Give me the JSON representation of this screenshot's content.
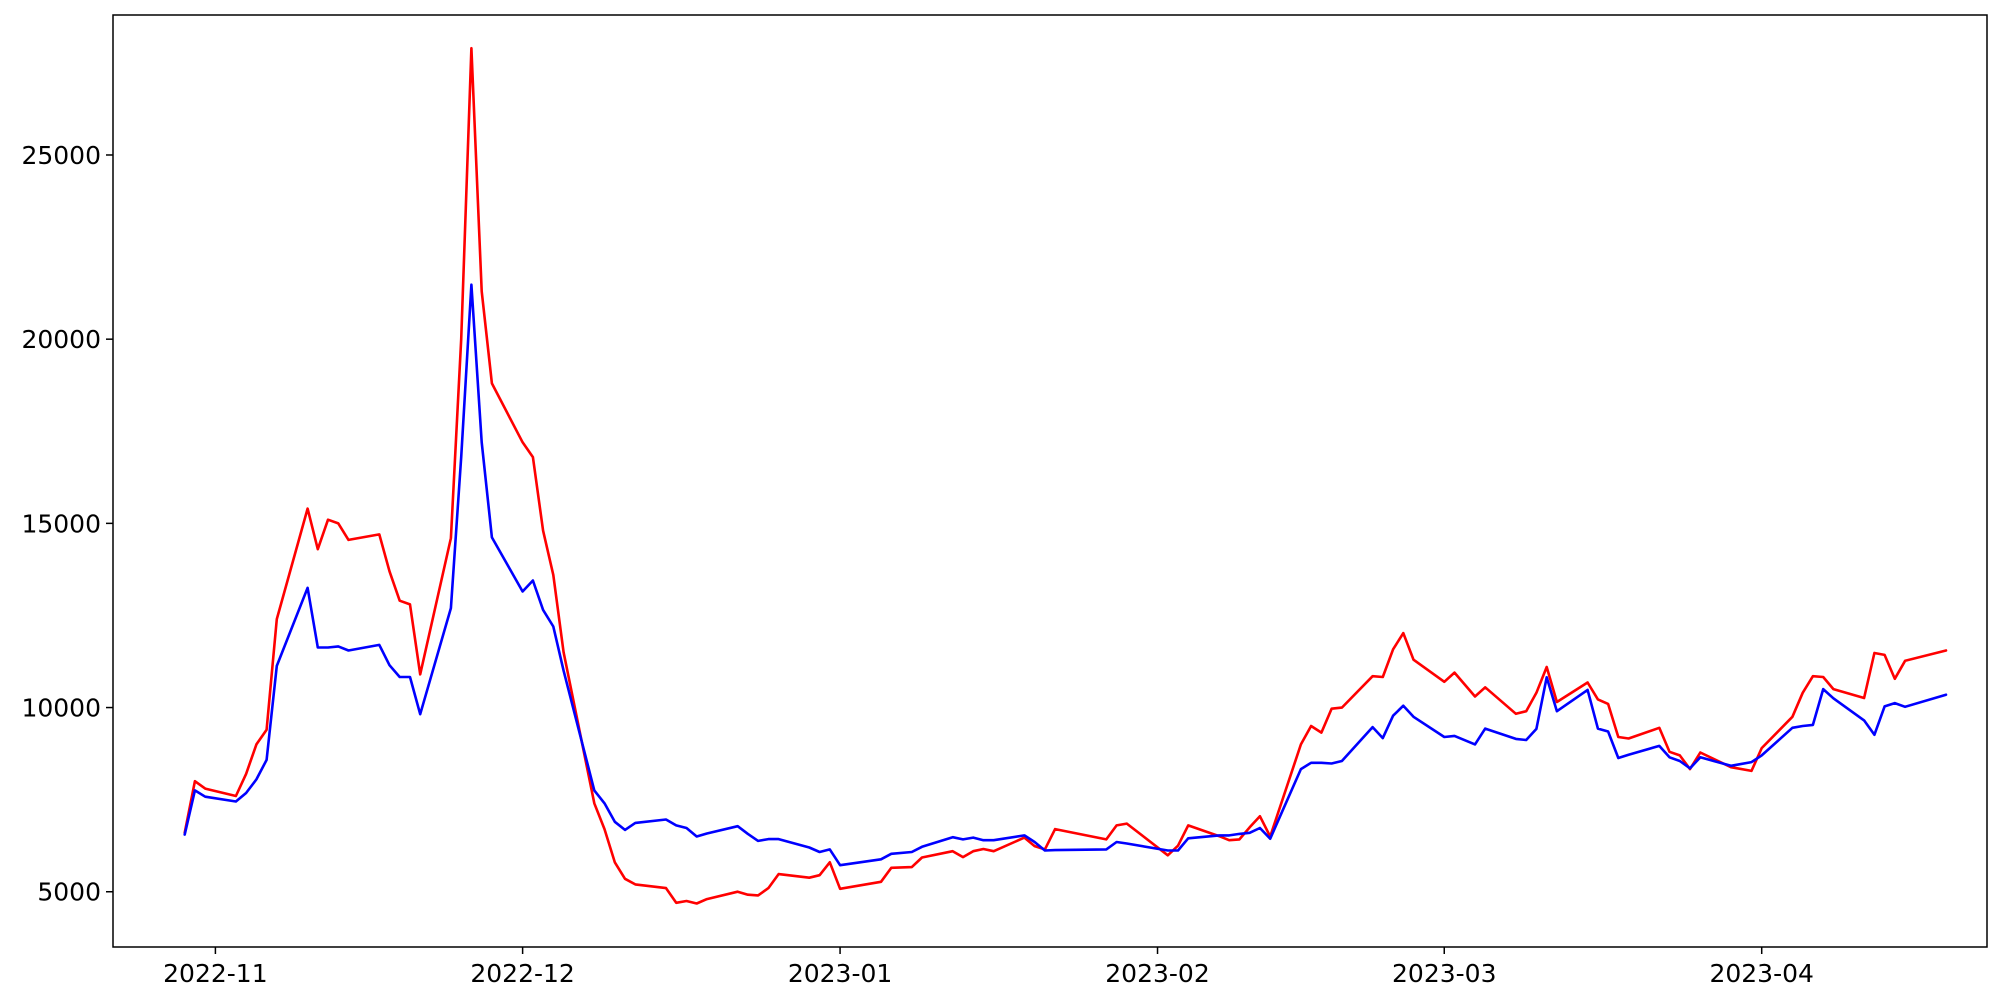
{
  "chart_data": {
    "type": "line",
    "title": "",
    "xlabel": "",
    "ylabel": "",
    "grid": false,
    "legend": "none",
    "xlim": [
      "2022-10-22",
      "2023-04-23"
    ],
    "ylim": [
      3500,
      28800
    ],
    "x_ticks": [
      {
        "date": "2022-11-01",
        "label": "2022-11"
      },
      {
        "date": "2022-12-01",
        "label": "2022-12"
      },
      {
        "date": "2023-01-01",
        "label": "2023-01"
      },
      {
        "date": "2023-02-01",
        "label": "2023-02"
      },
      {
        "date": "2023-03-01",
        "label": "2023-03"
      },
      {
        "date": "2023-04-01",
        "label": "2023-04"
      }
    ],
    "y_ticks": [
      {
        "value": 5000,
        "label": "5000"
      },
      {
        "value": 10000,
        "label": "10000"
      },
      {
        "value": 15000,
        "label": "15000"
      },
      {
        "value": 20000,
        "label": "20000"
      },
      {
        "value": 25000,
        "label": "25000"
      }
    ],
    "series": [
      {
        "color": "#ff0000",
        "points": [
          [
            "2022-10-29",
            6600
          ],
          [
            "2022-10-30",
            8000
          ],
          [
            "2022-10-31",
            7800
          ],
          [
            "2022-11-03",
            7600
          ],
          [
            "2022-11-04",
            8200
          ],
          [
            "2022-11-05",
            9000
          ],
          [
            "2022-11-06",
            9400
          ],
          [
            "2022-11-07",
            12400
          ],
          [
            "2022-11-10",
            15400
          ],
          [
            "2022-11-11",
            14300
          ],
          [
            "2022-11-12",
            15100
          ],
          [
            "2022-11-13",
            15000
          ],
          [
            "2022-11-14",
            14550
          ],
          [
            "2022-11-17",
            14700
          ],
          [
            "2022-11-18",
            13700
          ],
          [
            "2022-11-19",
            12900
          ],
          [
            "2022-11-20",
            12800
          ],
          [
            "2022-11-21",
            10900
          ],
          [
            "2022-11-24",
            14600
          ],
          [
            "2022-11-25",
            20000
          ],
          [
            "2022-11-26",
            27900
          ],
          [
            "2022-11-27",
            21300
          ],
          [
            "2022-11-28",
            18800
          ],
          [
            "2022-12-01",
            17200
          ],
          [
            "2022-12-02",
            16800
          ],
          [
            "2022-12-03",
            14800
          ],
          [
            "2022-12-04",
            13600
          ],
          [
            "2022-12-05",
            11500
          ],
          [
            "2022-12-08",
            7400
          ],
          [
            "2022-12-09",
            6700
          ],
          [
            "2022-12-10",
            5800
          ],
          [
            "2022-12-11",
            5350
          ],
          [
            "2022-12-12",
            5200
          ],
          [
            "2022-12-15",
            5100
          ],
          [
            "2022-12-16",
            4700
          ],
          [
            "2022-12-17",
            4750
          ],
          [
            "2022-12-18",
            4680
          ],
          [
            "2022-12-19",
            4800
          ],
          [
            "2022-12-22",
            5000
          ],
          [
            "2022-12-23",
            4920
          ],
          [
            "2022-12-24",
            4900
          ],
          [
            "2022-12-25",
            5100
          ],
          [
            "2022-12-26",
            5480
          ],
          [
            "2022-12-29",
            5380
          ],
          [
            "2022-12-30",
            5450
          ],
          [
            "2022-12-31",
            5800
          ],
          [
            "2023-01-01",
            5080
          ],
          [
            "2023-01-05",
            5270
          ],
          [
            "2023-01-06",
            5650
          ],
          [
            "2023-01-08",
            5670
          ],
          [
            "2023-01-09",
            5930
          ],
          [
            "2023-01-12",
            6100
          ],
          [
            "2023-01-13",
            5940
          ],
          [
            "2023-01-14",
            6100
          ],
          [
            "2023-01-15",
            6160
          ],
          [
            "2023-01-16",
            6100
          ],
          [
            "2023-01-19",
            6470
          ],
          [
            "2023-01-20",
            6240
          ],
          [
            "2023-01-21",
            6150
          ],
          [
            "2023-01-22",
            6700
          ],
          [
            "2023-01-27",
            6420
          ],
          [
            "2023-01-28",
            6800
          ],
          [
            "2023-01-29",
            6850
          ],
          [
            "2023-02-02",
            5990
          ],
          [
            "2023-02-03",
            6250
          ],
          [
            "2023-02-04",
            6800
          ],
          [
            "2023-02-07",
            6510
          ],
          [
            "2023-02-08",
            6400
          ],
          [
            "2023-02-09",
            6420
          ],
          [
            "2023-02-10",
            6750
          ],
          [
            "2023-02-11",
            7050
          ],
          [
            "2023-02-12",
            6500
          ],
          [
            "2023-02-15",
            9000
          ],
          [
            "2023-02-16",
            9500
          ],
          [
            "2023-02-17",
            9320
          ],
          [
            "2023-02-18",
            9970
          ],
          [
            "2023-02-19",
            10000
          ],
          [
            "2023-02-22",
            10850
          ],
          [
            "2023-02-23",
            10830
          ],
          [
            "2023-02-24",
            11580
          ],
          [
            "2023-02-25",
            12020
          ],
          [
            "2023-02-26",
            11300
          ],
          [
            "2023-03-01",
            10700
          ],
          [
            "2023-03-02",
            10950
          ],
          [
            "2023-03-04",
            10300
          ],
          [
            "2023-03-05",
            10550
          ],
          [
            "2023-03-08",
            9830
          ],
          [
            "2023-03-09",
            9900
          ],
          [
            "2023-03-10",
            10400
          ],
          [
            "2023-03-11",
            11100
          ],
          [
            "2023-03-12",
            10150
          ],
          [
            "2023-03-15",
            10680
          ],
          [
            "2023-03-16",
            10220
          ],
          [
            "2023-03-17",
            10100
          ],
          [
            "2023-03-18",
            9200
          ],
          [
            "2023-03-19",
            9160
          ],
          [
            "2023-03-22",
            9450
          ],
          [
            "2023-03-23",
            8800
          ],
          [
            "2023-03-24",
            8700
          ],
          [
            "2023-03-25",
            8330
          ],
          [
            "2023-03-26",
            8780
          ],
          [
            "2023-03-29",
            8380
          ],
          [
            "2023-03-31",
            8280
          ],
          [
            "2023-04-01",
            8900
          ],
          [
            "2023-04-04",
            9750
          ],
          [
            "2023-04-05",
            10400
          ],
          [
            "2023-04-06",
            10850
          ],
          [
            "2023-04-07",
            10830
          ],
          [
            "2023-04-08",
            10500
          ],
          [
            "2023-04-11",
            10260
          ],
          [
            "2023-04-12",
            11480
          ],
          [
            "2023-04-13",
            11430
          ],
          [
            "2023-04-14",
            10780
          ],
          [
            "2023-04-15",
            11270
          ],
          [
            "2023-04-19",
            11550
          ]
        ]
      },
      {
        "color": "#0000ff",
        "points": [
          [
            "2022-10-29",
            6550
          ],
          [
            "2022-10-30",
            7750
          ],
          [
            "2022-10-31",
            7580
          ],
          [
            "2022-11-03",
            7450
          ],
          [
            "2022-11-04",
            7680
          ],
          [
            "2022-11-05",
            8050
          ],
          [
            "2022-11-06",
            8580
          ],
          [
            "2022-11-07",
            11130
          ],
          [
            "2022-11-10",
            13250
          ],
          [
            "2022-11-11",
            11630
          ],
          [
            "2022-11-12",
            11630
          ],
          [
            "2022-11-13",
            11660
          ],
          [
            "2022-11-14",
            11550
          ],
          [
            "2022-11-17",
            11700
          ],
          [
            "2022-11-18",
            11150
          ],
          [
            "2022-11-19",
            10830
          ],
          [
            "2022-11-20",
            10830
          ],
          [
            "2022-11-21",
            9820
          ],
          [
            "2022-11-24",
            12700
          ],
          [
            "2022-11-25",
            16800
          ],
          [
            "2022-11-26",
            21480
          ],
          [
            "2022-11-27",
            17200
          ],
          [
            "2022-11-28",
            14620
          ],
          [
            "2022-12-01",
            13150
          ],
          [
            "2022-12-02",
            13450
          ],
          [
            "2022-12-03",
            12650
          ],
          [
            "2022-12-04",
            12200
          ],
          [
            "2022-12-05",
            11000
          ],
          [
            "2022-12-08",
            7750
          ],
          [
            "2022-12-09",
            7400
          ],
          [
            "2022-12-10",
            6900
          ],
          [
            "2022-12-11",
            6680
          ],
          [
            "2022-12-12",
            6870
          ],
          [
            "2022-12-15",
            6960
          ],
          [
            "2022-12-16",
            6800
          ],
          [
            "2022-12-17",
            6730
          ],
          [
            "2022-12-18",
            6500
          ],
          [
            "2022-12-19",
            6580
          ],
          [
            "2022-12-22",
            6780
          ],
          [
            "2022-12-23",
            6570
          ],
          [
            "2022-12-24",
            6380
          ],
          [
            "2022-12-25",
            6430
          ],
          [
            "2022-12-26",
            6430
          ],
          [
            "2022-12-29",
            6200
          ],
          [
            "2022-12-30",
            6080
          ],
          [
            "2022-12-31",
            6150
          ],
          [
            "2023-01-01",
            5720
          ],
          [
            "2023-01-05",
            5880
          ],
          [
            "2023-01-06",
            6030
          ],
          [
            "2023-01-08",
            6080
          ],
          [
            "2023-01-09",
            6220
          ],
          [
            "2023-01-12",
            6480
          ],
          [
            "2023-01-13",
            6420
          ],
          [
            "2023-01-14",
            6470
          ],
          [
            "2023-01-15",
            6400
          ],
          [
            "2023-01-16",
            6400
          ],
          [
            "2023-01-19",
            6530
          ],
          [
            "2023-01-20",
            6350
          ],
          [
            "2023-01-21",
            6120
          ],
          [
            "2023-01-22",
            6130
          ],
          [
            "2023-01-27",
            6150
          ],
          [
            "2023-01-28",
            6350
          ],
          [
            "2023-01-29",
            6310
          ],
          [
            "2023-02-02",
            6120
          ],
          [
            "2023-02-03",
            6120
          ],
          [
            "2023-02-04",
            6450
          ],
          [
            "2023-02-07",
            6530
          ],
          [
            "2023-02-08",
            6530
          ],
          [
            "2023-02-09",
            6570
          ],
          [
            "2023-02-10",
            6600
          ],
          [
            "2023-02-11",
            6730
          ],
          [
            "2023-02-12",
            6440
          ],
          [
            "2023-02-15",
            8330
          ],
          [
            "2023-02-16",
            8500
          ],
          [
            "2023-02-17",
            8500
          ],
          [
            "2023-02-18",
            8480
          ],
          [
            "2023-02-19",
            8550
          ],
          [
            "2023-02-22",
            9470
          ],
          [
            "2023-02-23",
            9170
          ],
          [
            "2023-02-24",
            9780
          ],
          [
            "2023-02-25",
            10050
          ],
          [
            "2023-02-26",
            9750
          ],
          [
            "2023-03-01",
            9200
          ],
          [
            "2023-03-02",
            9230
          ],
          [
            "2023-03-04",
            9000
          ],
          [
            "2023-03-05",
            9430
          ],
          [
            "2023-03-08",
            9150
          ],
          [
            "2023-03-09",
            9120
          ],
          [
            "2023-03-10",
            9420
          ],
          [
            "2023-03-11",
            10820
          ],
          [
            "2023-03-12",
            9900
          ],
          [
            "2023-03-15",
            10480
          ],
          [
            "2023-03-16",
            9430
          ],
          [
            "2023-03-17",
            9350
          ],
          [
            "2023-03-18",
            8630
          ],
          [
            "2023-03-19",
            8720
          ],
          [
            "2023-03-22",
            8960
          ],
          [
            "2023-03-23",
            8650
          ],
          [
            "2023-03-24",
            8550
          ],
          [
            "2023-03-25",
            8350
          ],
          [
            "2023-03-26",
            8650
          ],
          [
            "2023-03-29",
            8420
          ],
          [
            "2023-03-31",
            8520
          ],
          [
            "2023-04-01",
            8700
          ],
          [
            "2023-04-04",
            9450
          ],
          [
            "2023-04-05",
            9500
          ],
          [
            "2023-04-06",
            9530
          ],
          [
            "2023-04-07",
            10500
          ],
          [
            "2023-04-08",
            10250
          ],
          [
            "2023-04-11",
            9650
          ],
          [
            "2023-04-12",
            9260
          ],
          [
            "2023-04-13",
            10030
          ],
          [
            "2023-04-14",
            10120
          ],
          [
            "2023-04-15",
            10020
          ],
          [
            "2023-04-19",
            10350
          ]
        ]
      }
    ]
  }
}
